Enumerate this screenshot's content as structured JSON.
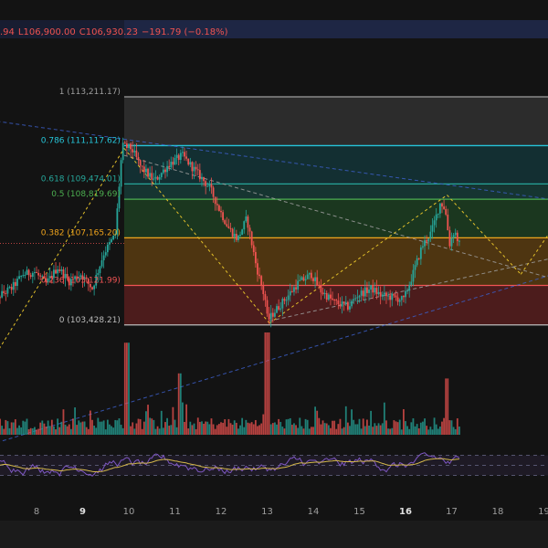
{
  "theme": {
    "background": "#131313",
    "up_color": "#26a69a",
    "down_color": "#ef5350",
    "rsi_color": "#7e57c2",
    "rsi_ma_color": "#d4b84a",
    "trend_line_color": "#3b5ec6",
    "zigzag_color": "#e3c12a",
    "gray_line_color": "#9e9e9e"
  },
  "ohlc_header": {
    "open_fragment": ".94",
    "low": "L106,900.00",
    "close": "C106,930.23",
    "change": "−191.79 (−0.18%)"
  },
  "chart_data": {
    "type": "candlestick",
    "price_range": [
      101500,
      116500
    ],
    "x_axis": {
      "ticks": [
        {
          "label": "8",
          "bold": false
        },
        {
          "label": "9",
          "bold": true
        },
        {
          "label": "10",
          "bold": false
        },
        {
          "label": "11",
          "bold": false
        },
        {
          "label": "12",
          "bold": false
        },
        {
          "label": "13",
          "bold": false
        },
        {
          "label": "14",
          "bold": false
        },
        {
          "label": "15",
          "bold": false
        },
        {
          "label": "16",
          "bold": true
        },
        {
          "label": "17",
          "bold": false
        },
        {
          "label": "18",
          "bold": false
        },
        {
          "label": "19",
          "bold": false
        }
      ],
      "day_range": [
        7.0,
        19.0
      ]
    },
    "fibonacci": {
      "levels": [
        {
          "label": "0 (103,428.21)",
          "price": 103428.21,
          "color": "#bdbdbd",
          "fill": null
        },
        {
          "label": "0.236 (105,121.99)",
          "price": 105121.99,
          "color": "#f05454",
          "fill": "rgba(155,40,40,0.42)"
        },
        {
          "label": "0.382 (107,165.20)",
          "price": 107165.2,
          "color": "#f0a41c",
          "fill": "rgba(150,95,15,0.45)"
        },
        {
          "label": "0.5 (108,819.69)",
          "price": 108819.69,
          "color": "#4caf50",
          "fill": "rgba(40,110,50,0.40)"
        },
        {
          "label": "0.618 (109,474.01)",
          "price": 109474.01,
          "color": "#26a69a",
          "fill": "rgba(30,110,100,0.38)"
        },
        {
          "label": "0.786 (111,117.62)",
          "price": 111117.62,
          "color": "#26c6da",
          "fill": "rgba(20,100,110,0.35)"
        },
        {
          "label": "1 (113,211.17)",
          "price": 113211.17,
          "color": "#9e9e9e",
          "fill": "rgba(110,110,110,0.28)"
        }
      ],
      "start_day": 9.9
    },
    "price_path": [
      [
        7.0,
        103600
      ],
      [
        7.25,
        104700
      ],
      [
        7.5,
        105000
      ],
      [
        7.75,
        105600
      ],
      [
        8.0,
        105700
      ],
      [
        8.25,
        105200
      ],
      [
        8.5,
        105900
      ],
      [
        8.75,
        105300
      ],
      [
        9.0,
        105600
      ],
      [
        9.25,
        105000
      ],
      [
        9.5,
        106500
      ],
      [
        9.75,
        107300
      ],
      [
        9.9,
        111100
      ],
      [
        10.1,
        111000
      ],
      [
        10.3,
        110200
      ],
      [
        10.6,
        109600
      ],
      [
        10.9,
        110300
      ],
      [
        11.2,
        110700
      ],
      [
        11.5,
        110000
      ],
      [
        11.8,
        109300
      ],
      [
        12.0,
        108400
      ],
      [
        12.2,
        107600
      ],
      [
        12.4,
        107100
      ],
      [
        12.6,
        108000
      ],
      [
        12.8,
        106000
      ],
      [
        13.0,
        104500
      ],
      [
        13.05,
        103600
      ],
      [
        13.2,
        104000
      ],
      [
        13.5,
        104700
      ],
      [
        13.7,
        105200
      ],
      [
        14.0,
        105600
      ],
      [
        14.2,
        104900
      ],
      [
        14.5,
        104400
      ],
      [
        14.8,
        104200
      ],
      [
        15.0,
        104700
      ],
      [
        15.3,
        105000
      ],
      [
        15.5,
        104700
      ],
      [
        15.8,
        104600
      ],
      [
        16.0,
        104500
      ],
      [
        16.2,
        105600
      ],
      [
        16.4,
        106800
      ],
      [
        16.6,
        107400
      ],
      [
        16.8,
        108700
      ],
      [
        16.9,
        108400
      ],
      [
        17.0,
        106900
      ],
      [
        17.1,
        107500
      ],
      [
        17.2,
        106900
      ]
    ],
    "zigzag": [
      [
        7.0,
        101800
      ],
      [
        9.9,
        111000
      ],
      [
        13.05,
        103500
      ],
      [
        16.9,
        109000
      ],
      [
        18.5,
        105600
      ],
      [
        19.2,
        107600
      ]
    ],
    "trend_lines": [
      {
        "from": [
          7.0,
          112200
        ],
        "to": [
          19.2,
          108800
        ],
        "style": "blue-dashed"
      },
      {
        "from": [
          7.0,
          98300
        ],
        "to": [
          19.2,
          105600
        ],
        "style": "blue-dashed"
      },
      {
        "from": [
          9.9,
          110700
        ],
        "to": [
          19.2,
          105400
        ],
        "style": "gray-dashed"
      },
      {
        "from": [
          13.05,
          103600
        ],
        "to": [
          19.2,
          106300
        ],
        "style": "gray-dashed"
      }
    ],
    "current_price": 106930.23,
    "volume_spikes": [
      {
        "day": 9.95,
        "rel": 0.9
      },
      {
        "day": 13.0,
        "rel": 1.0
      },
      {
        "day": 11.1,
        "rel": 0.6
      },
      {
        "day": 16.9,
        "rel": 0.55
      }
    ],
    "rsi_bands": [
      70,
      50,
      30
    ]
  }
}
